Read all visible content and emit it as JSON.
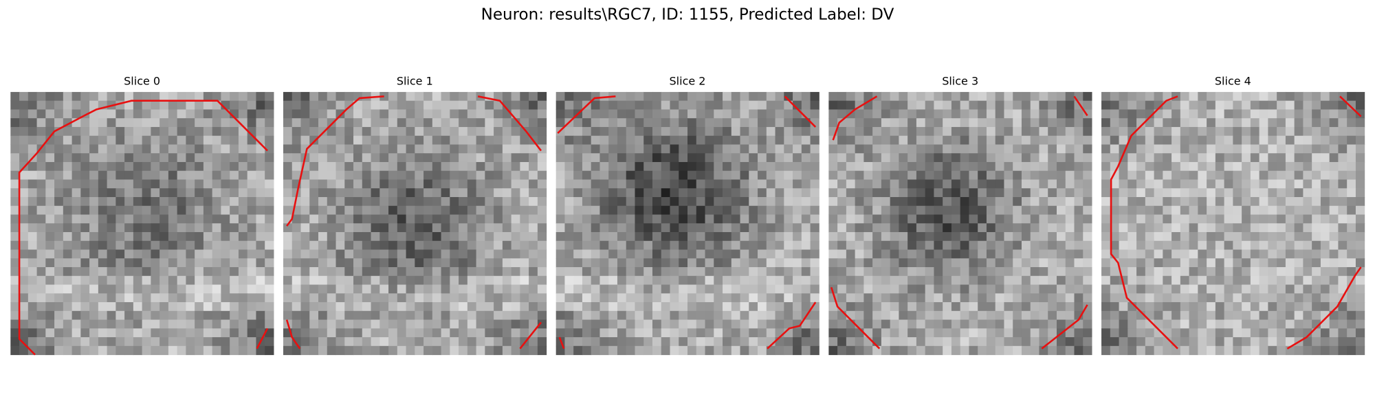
{
  "title": "Neuron: results\\RGC7, ID: 1155, Predicted Label: DV",
  "panels": [
    {
      "title": "Slice 0"
    },
    {
      "title": "Slice 1"
    },
    {
      "title": "Slice 2"
    },
    {
      "title": "Slice 3"
    },
    {
      "title": "Slice 4"
    }
  ]
}
